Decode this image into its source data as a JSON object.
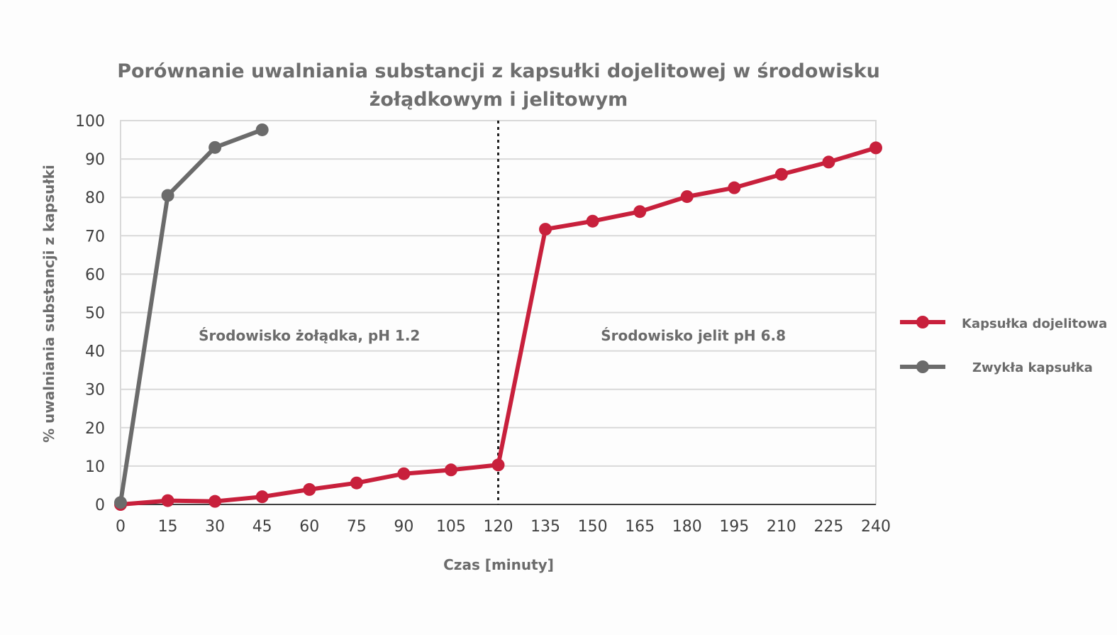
{
  "chart_data": {
    "type": "line",
    "title_line1": "Porównanie uwalniania substancji z kapsułki dojelitowej w środowisku",
    "title_line2": "żołądkowym i jelitowym",
    "xlabel": "Czas [minuty]",
    "ylabel": "% uwalniania substancji z kapsułki",
    "x_ticks": [
      0,
      15,
      30,
      45,
      60,
      75,
      90,
      105,
      120,
      135,
      150,
      165,
      180,
      195,
      210,
      225,
      240
    ],
    "y_ticks": [
      0,
      10,
      20,
      30,
      40,
      50,
      60,
      70,
      80,
      90,
      100
    ],
    "xlim": [
      0,
      240
    ],
    "ylim": [
      0,
      100
    ],
    "grid": "horizontal",
    "legend_position": "right",
    "divider_x": 120,
    "regions": [
      {
        "label": "Środowisko żołądka, pH 1.2",
        "center_x": 60,
        "y": 44
      },
      {
        "label": "Środowisko jelit pH 6.8",
        "center_x": 182,
        "y": 44
      }
    ],
    "series": [
      {
        "name": "Kapsułka dojelitowa",
        "color": "#c8203c",
        "x": [
          0,
          15,
          30,
          45,
          60,
          75,
          90,
          105,
          120,
          135,
          150,
          165,
          180,
          195,
          210,
          225,
          240
        ],
        "y": [
          0,
          1,
          0.8,
          2,
          3.9,
          5.6,
          8,
          9,
          10.3,
          71.7,
          73.8,
          76.3,
          80.2,
          82.5,
          86,
          89.2,
          92.9
        ]
      },
      {
        "name": "Zwykła kapsułka",
        "color": "#6b6b6b",
        "x": [
          0,
          15,
          30,
          45
        ],
        "y": [
          0.5,
          80.5,
          93,
          97.6
        ]
      }
    ]
  }
}
